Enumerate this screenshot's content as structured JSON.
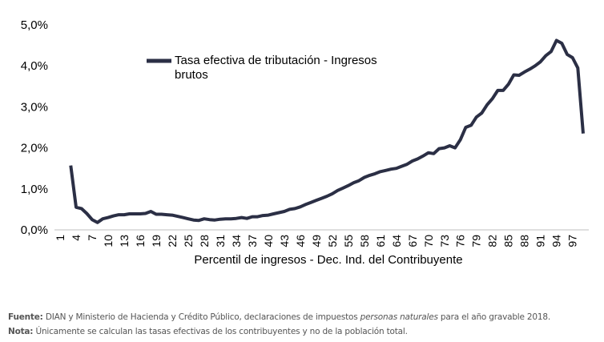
{
  "chart_data": {
    "type": "line",
    "x_label": "Percentil de ingresos - Dec. Ind. del Contribuyente",
    "categories": [
      "1",
      null,
      null,
      "4",
      null,
      null,
      "7",
      null,
      null,
      "10",
      null,
      null,
      "13",
      null,
      null,
      "16",
      null,
      null,
      "19",
      null,
      null,
      "22",
      null,
      null,
      "25",
      null,
      null,
      "28",
      null,
      null,
      "31",
      null,
      null,
      "34",
      null,
      null,
      "37",
      null,
      null,
      "40",
      null,
      null,
      "43",
      null,
      null,
      "46",
      null,
      null,
      "49",
      null,
      null,
      "52",
      null,
      null,
      "55",
      null,
      null,
      "58",
      null,
      null,
      "61",
      null,
      null,
      "64",
      null,
      null,
      "67",
      null,
      null,
      "70",
      null,
      null,
      "73",
      null,
      null,
      "76",
      null,
      null,
      "79",
      null,
      null,
      "82",
      null,
      null,
      "85",
      null,
      null,
      "88",
      null,
      null,
      "91",
      null,
      null,
      "94",
      null,
      null,
      "97",
      null,
      null
    ],
    "series": [
      {
        "name": "Tasa efectiva de tributación - Ingresos brutos",
        "color": "#2b2f45",
        "values": [
          null,
          null,
          1.57,
          0.55,
          0.52,
          0.4,
          0.25,
          0.18,
          0.27,
          0.3,
          0.34,
          0.37,
          0.37,
          0.39,
          0.39,
          0.39,
          0.4,
          0.45,
          0.38,
          0.38,
          0.37,
          0.36,
          0.33,
          0.3,
          0.27,
          0.24,
          0.23,
          0.27,
          0.25,
          0.24,
          0.26,
          0.27,
          0.27,
          0.28,
          0.3,
          0.28,
          0.32,
          0.32,
          0.35,
          0.36,
          0.39,
          0.42,
          0.45,
          0.5,
          0.52,
          0.56,
          0.62,
          0.67,
          0.72,
          0.77,
          0.82,
          0.88,
          0.96,
          1.02,
          1.08,
          1.15,
          1.2,
          1.28,
          1.33,
          1.37,
          1.42,
          1.45,
          1.48,
          1.5,
          1.55,
          1.6,
          1.68,
          1.73,
          1.8,
          1.88,
          1.86,
          1.98,
          2.0,
          2.05,
          2.0,
          2.2,
          2.5,
          2.55,
          2.75,
          2.85,
          3.05,
          3.2,
          3.4,
          3.4,
          3.55,
          3.78,
          3.77,
          3.85,
          3.92,
          4.0,
          4.1,
          4.25,
          4.35,
          4.62,
          4.55,
          4.28,
          4.2,
          3.95,
          2.35
        ]
      }
    ],
    "ylim": [
      0,
      5
    ],
    "yticks": [
      {
        "value": 0,
        "label": "0,0%"
      },
      {
        "value": 1,
        "label": "1,0%"
      },
      {
        "value": 2,
        "label": "2,0%"
      },
      {
        "value": 3,
        "label": "3,0%"
      },
      {
        "value": 4,
        "label": "4,0%"
      },
      {
        "value": 5,
        "label": "5,0%"
      }
    ],
    "grid": false
  },
  "footnotes": [
    {
      "label": "Fuente:",
      "text": "DIAN y Ministerio de Hacienda y Crédito Público, declaraciones de impuestos ",
      "italic": "personas naturales",
      "after": " para el año gravable 2018."
    },
    {
      "label": "Nota:",
      "text": "Únicamente se calculan las tasas efectivas de los contribuyentes y no de la población total."
    }
  ]
}
